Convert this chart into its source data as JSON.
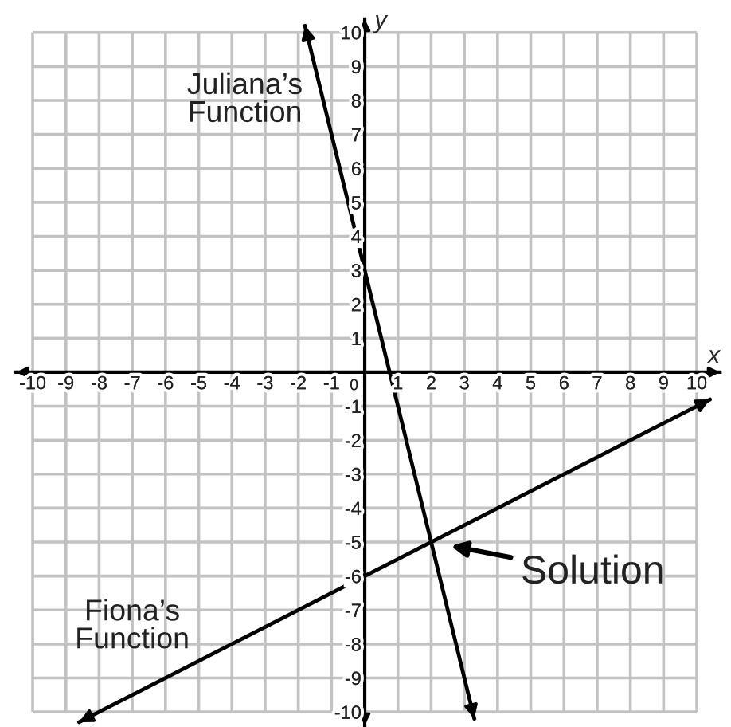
{
  "chart_data": {
    "type": "line",
    "xlabel": "x",
    "ylabel": "y",
    "xlim": [
      -10.5,
      10.7
    ],
    "ylim": [
      -10.4,
      10.4
    ],
    "xticks": [
      -10,
      -9,
      -8,
      -7,
      -6,
      -5,
      -4,
      -3,
      -2,
      -1,
      0,
      1,
      2,
      3,
      4,
      5,
      6,
      7,
      8,
      9,
      10
    ],
    "yticks": [
      -10,
      -9,
      -8,
      -7,
      -6,
      -5,
      -4,
      -3,
      -2,
      -1,
      {
        "value": 0,
        "label": null
      },
      1,
      2,
      3,
      4,
      5,
      6,
      7,
      8,
      9,
      10
    ],
    "grid": true,
    "line_style": "solid",
    "series": [
      {
        "name": "Juliana’s\nFunction",
        "color": "#000000",
        "x": [
          -1.8,
          0,
          2,
          3.3
        ],
        "values": [
          10.2,
          3,
          -5,
          -10.2
        ]
      },
      {
        "name": "Fiona’s\nFunction",
        "color": "#000000",
        "x": [
          -8.6,
          0,
          2,
          10.4
        ],
        "values": [
          -10.3,
          -6,
          -5,
          -0.8
        ]
      }
    ],
    "annotations": [
      {
        "text": "Solution",
        "x": 2,
        "y": -5
      }
    ]
  }
}
